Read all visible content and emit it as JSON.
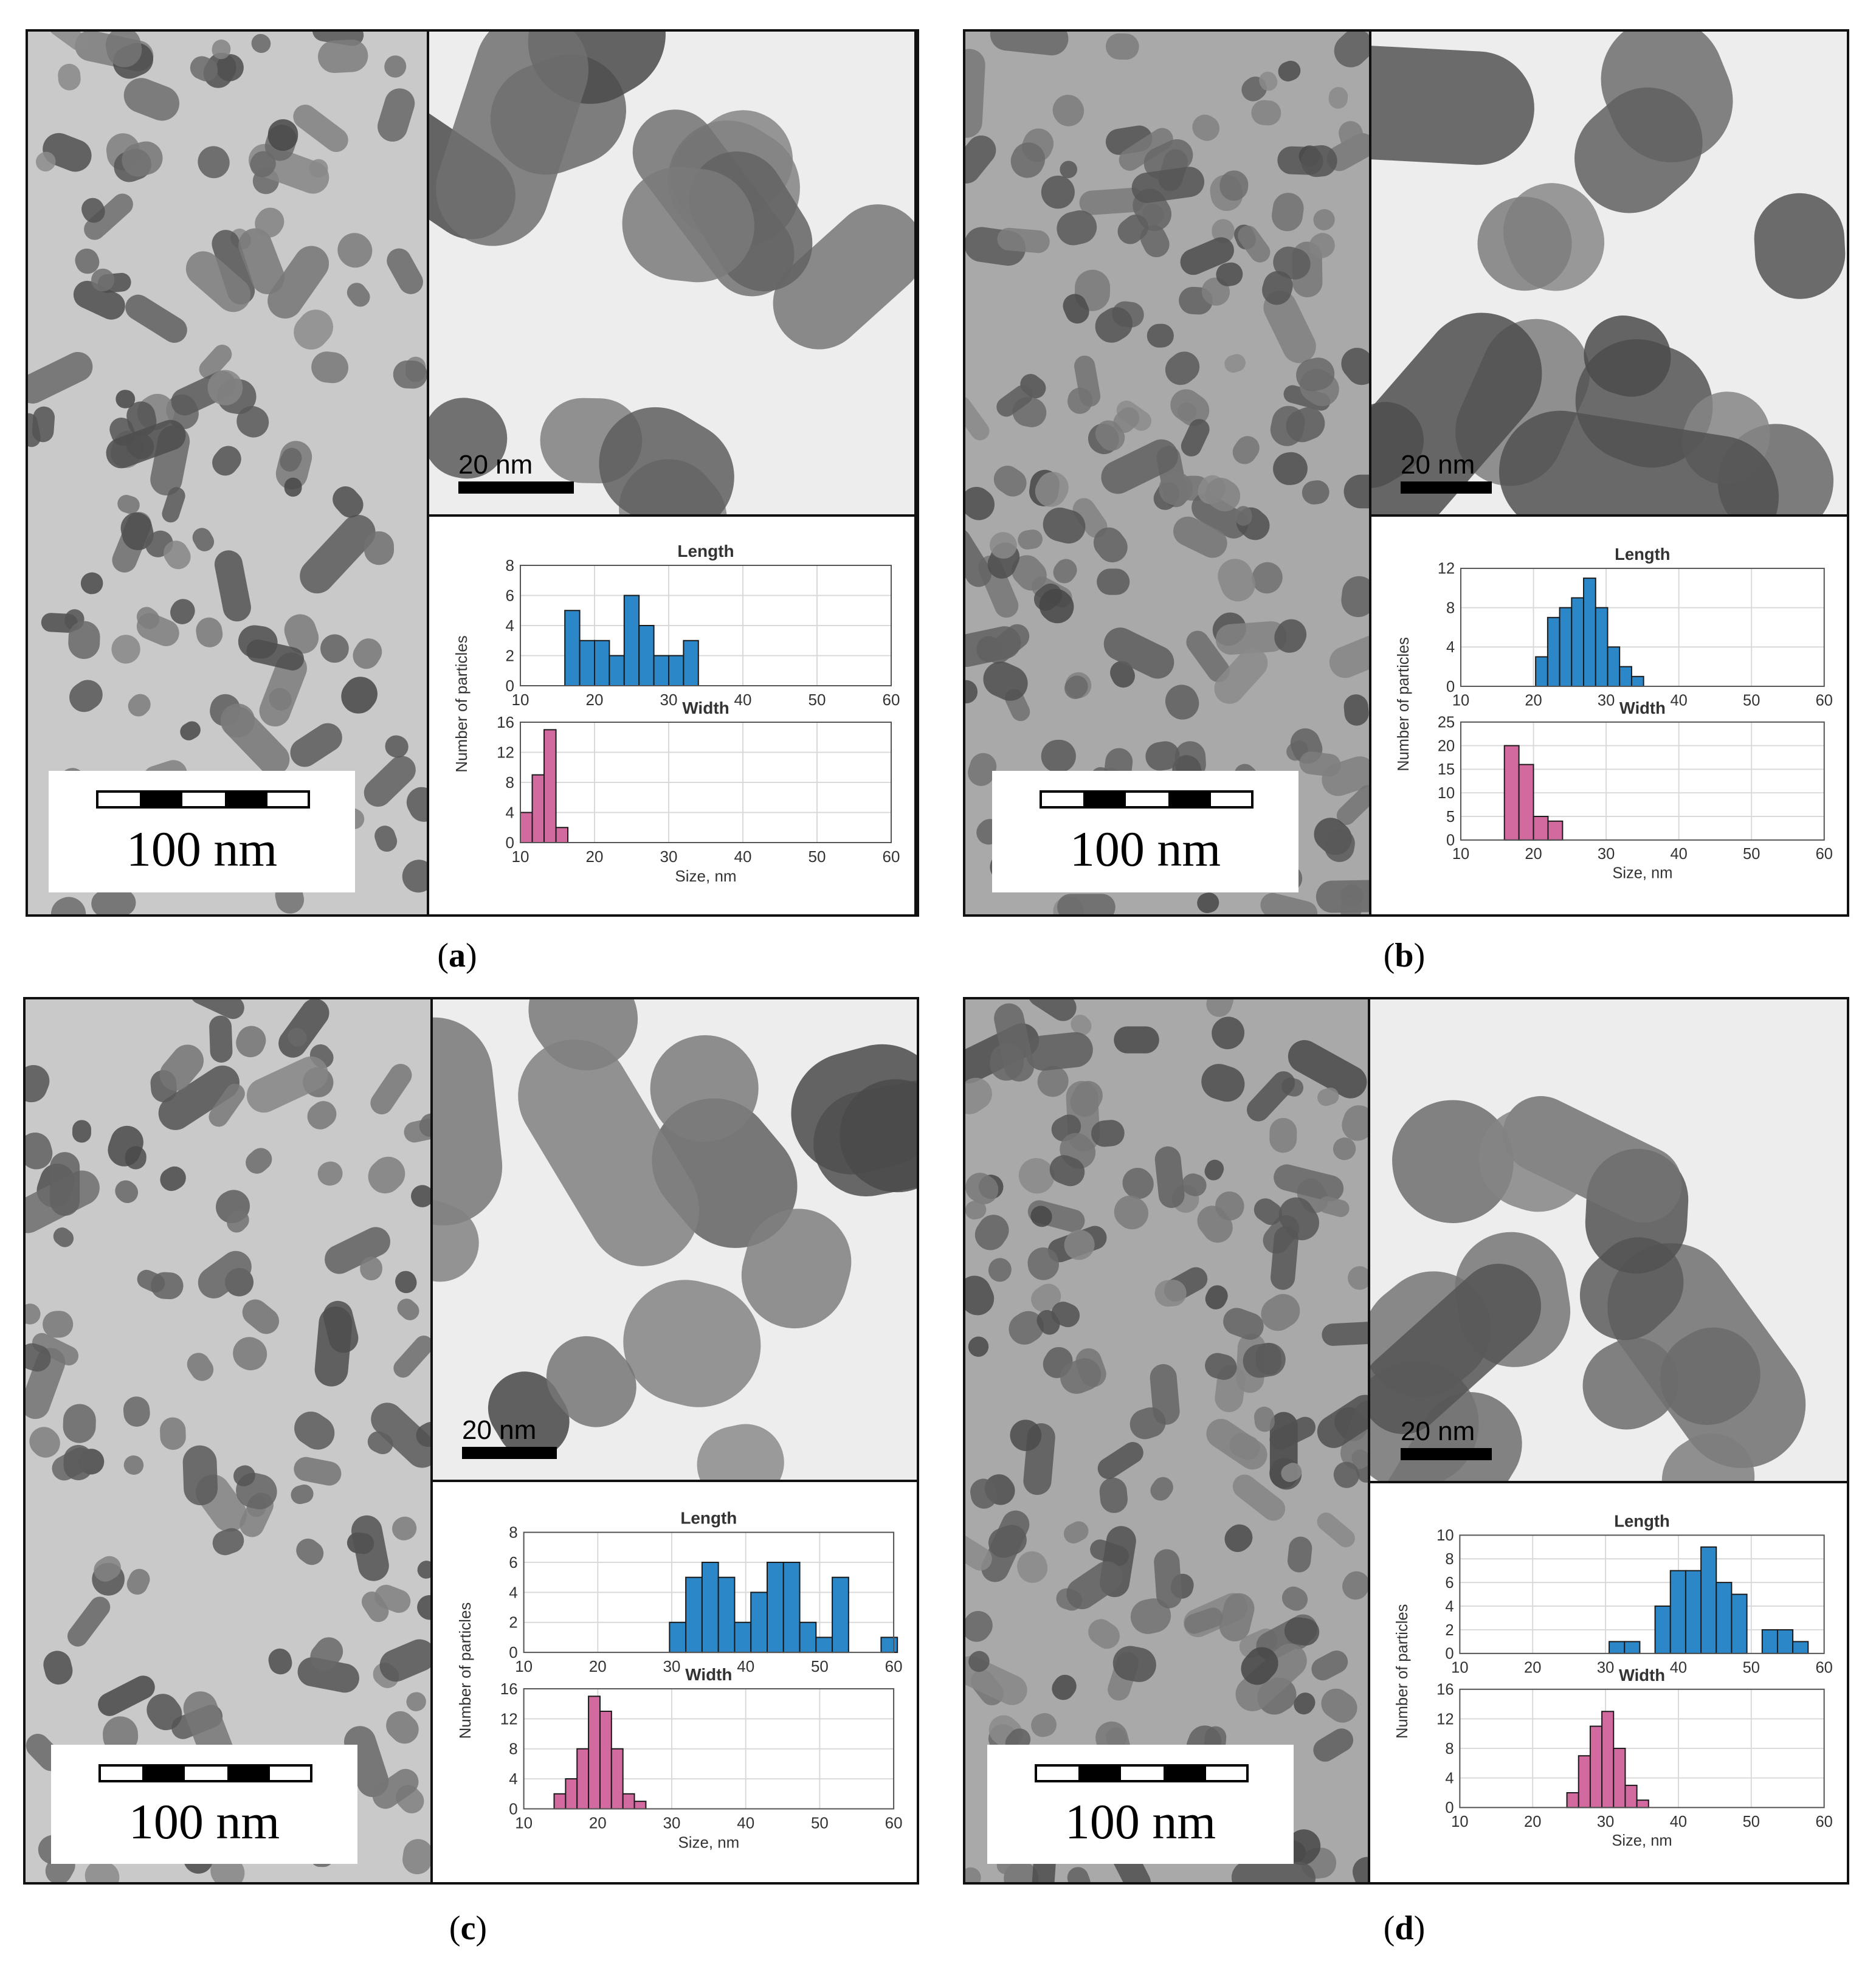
{
  "figure": {
    "panels": [
      {
        "id": "a",
        "label": "a",
        "scale_large": "100 nm",
        "scale_small": "20 nm",
        "tone": "light"
      },
      {
        "id": "b",
        "label": "b",
        "scale_large": "100 nm",
        "scale_small": "20 nm",
        "tone": "dark"
      },
      {
        "id": "c",
        "label": "c",
        "scale_large": "100 nm",
        "scale_small": "20 nm",
        "tone": "light"
      },
      {
        "id": "d",
        "label": "d",
        "scale_large": "100 nm",
        "scale_small": "20 nm",
        "tone": "dark"
      }
    ],
    "colors": {
      "length_bars": "#2b87c8",
      "width_bars": "#d26aa0",
      "bar_stroke": "#1a1a1a",
      "grid": "#d9d9d9",
      "tem_background_light": "#c9c9c9",
      "tem_background_dark": "#a9a9a9",
      "particle": "#6a6a6a"
    }
  },
  "chart_data": [
    {
      "panel": "a",
      "type": "bar",
      "ylabel": "Number of particles",
      "xlabel": "Size, nm",
      "x_ticks": [
        10,
        20,
        30,
        40,
        50,
        60
      ],
      "xlim": [
        10,
        60
      ],
      "length": {
        "title": "Length",
        "ylim": [
          0,
          8
        ],
        "y_ticks": [
          0,
          2,
          4,
          6,
          8
        ],
        "bin_width": 2,
        "bins": [
          16,
          18,
          20,
          22,
          24,
          26,
          28,
          30,
          32
        ],
        "values": [
          5,
          3,
          3,
          2,
          6,
          4,
          2,
          2,
          3
        ]
      },
      "width": {
        "title": "Width",
        "ylim": [
          0,
          16
        ],
        "y_ticks": [
          0,
          4,
          8,
          12,
          16
        ],
        "bin_width": 1.6,
        "bins": [
          10,
          11.6,
          13.2,
          14.8,
          16.4
        ],
        "values": [
          4,
          9,
          15,
          2,
          0
        ]
      }
    },
    {
      "panel": "b",
      "type": "bar",
      "ylabel": "Number of particles",
      "xlabel": "Size, nm",
      "x_ticks": [
        10,
        20,
        30,
        40,
        50,
        60
      ],
      "xlim": [
        10,
        60
      ],
      "length": {
        "title": "Length",
        "ylim": [
          0,
          12
        ],
        "y_ticks": [
          0,
          4,
          8,
          12
        ],
        "bin_width": 1.65,
        "bins": [
          20.3,
          21.95,
          23.6,
          25.25,
          26.9,
          28.55,
          30.2,
          31.85,
          33.5
        ],
        "values": [
          3,
          7,
          8,
          9,
          11,
          8,
          4,
          2,
          1
        ]
      },
      "width": {
        "title": "Width",
        "ylim": [
          0,
          25
        ],
        "y_ticks": [
          0,
          5,
          10,
          15,
          20,
          25
        ],
        "bin_width": 2,
        "bins": [
          16,
          18,
          20,
          22
        ],
        "values": [
          20,
          16,
          5,
          4
        ]
      }
    },
    {
      "panel": "c",
      "type": "bar",
      "ylabel": "Number of particles",
      "xlabel": "Size, nm",
      "x_ticks": [
        10,
        20,
        30,
        40,
        50,
        60
      ],
      "xlim": [
        10,
        60
      ],
      "length": {
        "title": "Length",
        "ylim": [
          0,
          8
        ],
        "y_ticks": [
          0,
          2,
          4,
          6,
          8
        ],
        "bin_width": 2.2,
        "bins": [
          29.7,
          31.9,
          34.1,
          36.3,
          38.5,
          40.7,
          42.9,
          45.1,
          47.3,
          49.5,
          51.7,
          53.9,
          56.1,
          58.3
        ],
        "values": [
          2,
          5,
          6,
          5,
          2,
          4,
          6,
          6,
          2,
          1,
          5,
          0,
          0,
          1
        ]
      },
      "width": {
        "title": "Width",
        "ylim": [
          0,
          16
        ],
        "y_ticks": [
          0,
          4,
          8,
          12,
          16
        ],
        "bin_width": 1.55,
        "bins": [
          14.1,
          15.65,
          17.2,
          18.75,
          20.3,
          21.85,
          23.4,
          24.95,
          26.5
        ],
        "values": [
          2,
          4,
          8,
          15,
          13,
          8,
          2,
          1,
          0
        ]
      }
    },
    {
      "panel": "d",
      "type": "bar",
      "ylabel": "Number of particles",
      "xlabel": "Size, nm",
      "x_ticks": [
        10,
        20,
        30,
        40,
        50,
        60
      ],
      "xlim": [
        10,
        60
      ],
      "length": {
        "title": "Length",
        "ylim": [
          0,
          10
        ],
        "y_ticks": [
          0,
          2,
          4,
          6,
          8,
          10
        ],
        "bin_width": 2.1,
        "bins": [
          30.5,
          32.6,
          34.7,
          36.8,
          38.9,
          41.0,
          43.1,
          45.2,
          47.3,
          49.4,
          51.5,
          53.6,
          55.7
        ],
        "values": [
          1,
          1,
          0,
          4,
          7,
          7,
          9,
          6,
          5,
          0,
          2,
          2,
          1
        ]
      },
      "width": {
        "title": "Width",
        "ylim": [
          0,
          16
        ],
        "y_ticks": [
          0,
          4,
          8,
          12,
          16
        ],
        "bin_width": 1.6,
        "bins": [
          24.7,
          26.3,
          27.9,
          29.5,
          31.1,
          32.7,
          34.3,
          35.9
        ],
        "values": [
          2,
          7,
          11,
          13,
          8,
          3,
          1,
          0
        ]
      }
    }
  ]
}
